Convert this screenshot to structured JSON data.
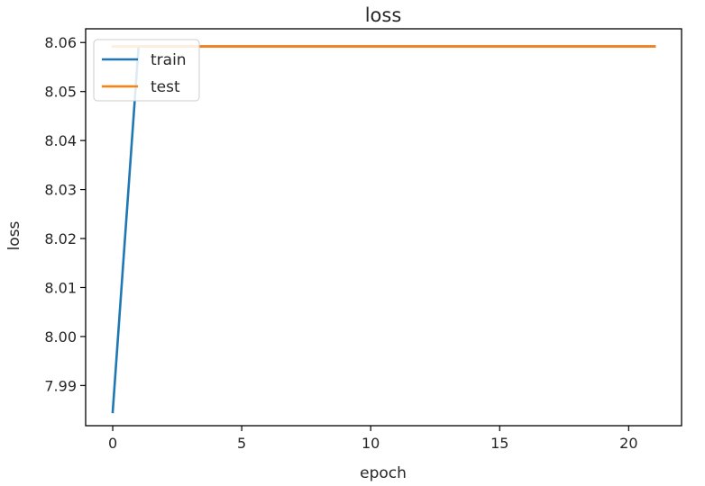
{
  "chart_data": {
    "type": "line",
    "title": "loss",
    "xlabel": "epoch",
    "ylabel": "loss",
    "xlim": [
      -1.05,
      22.05
    ],
    "ylim": [
      7.9818,
      8.0628
    ],
    "xticks": [
      0,
      5,
      10,
      15,
      20
    ],
    "yticks": [
      7.99,
      8.0,
      8.01,
      8.02,
      8.03,
      8.04,
      8.05,
      8.06
    ],
    "grid": false,
    "legend": "upper left",
    "series": [
      {
        "name": "train",
        "color": "#1f77b4",
        "x": [
          0,
          1,
          2,
          3,
          4,
          5,
          6,
          7,
          8,
          9,
          10,
          11,
          12,
          13,
          14,
          15,
          16,
          17,
          18,
          19,
          20,
          21
        ],
        "y": [
          7.9846,
          8.0592,
          8.0592,
          8.0592,
          8.0592,
          8.0592,
          8.0592,
          8.0592,
          8.0592,
          8.0592,
          8.0592,
          8.0592,
          8.0592,
          8.0592,
          8.0592,
          8.0592,
          8.0592,
          8.0592,
          8.0592,
          8.0592,
          8.0592,
          8.0592
        ]
      },
      {
        "name": "test",
        "color": "#ff7f0e",
        "x": [
          0,
          1,
          2,
          3,
          4,
          5,
          6,
          7,
          8,
          9,
          10,
          11,
          12,
          13,
          14,
          15,
          16,
          17,
          18,
          19,
          20,
          21
        ],
        "y": [
          8.0592,
          8.0592,
          8.0592,
          8.0592,
          8.0592,
          8.0592,
          8.0592,
          8.0592,
          8.0592,
          8.0592,
          8.0592,
          8.0592,
          8.0592,
          8.0592,
          8.0592,
          8.0592,
          8.0592,
          8.0592,
          8.0592,
          8.0592,
          8.0592,
          8.0592
        ]
      }
    ]
  }
}
